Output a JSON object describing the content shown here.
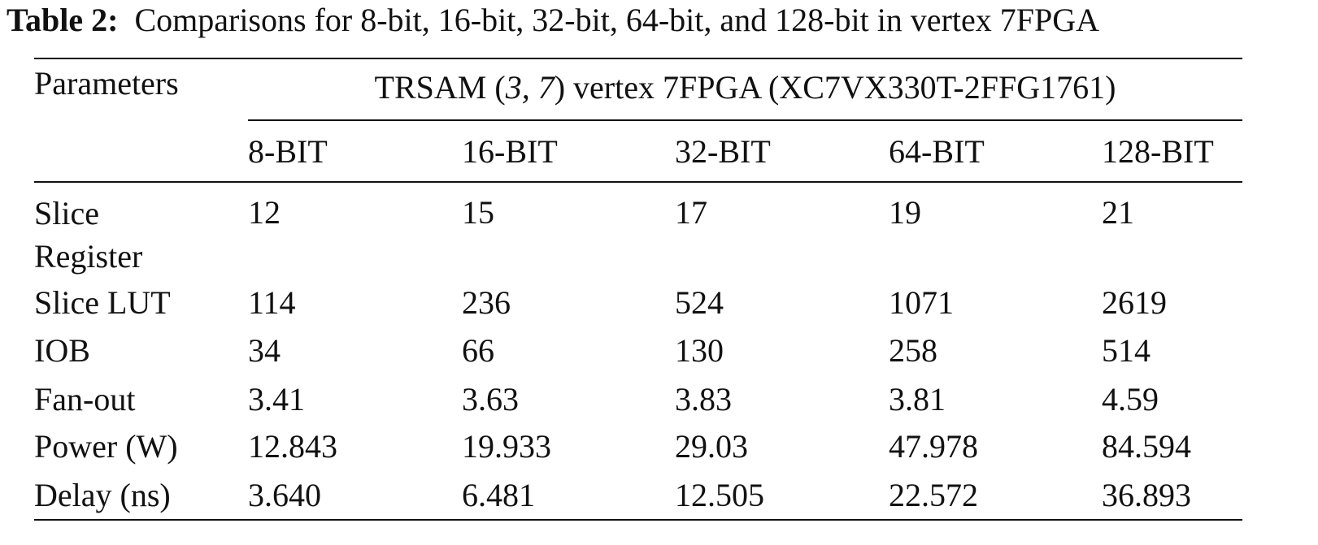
{
  "caption": {
    "label": "Table 2:",
    "text": "Comparisons for 8-bit, 16-bit, 32-bit, 64-bit, and 128-bit in vertex 7FPGA"
  },
  "table": {
    "corner": "Parameters",
    "group_header": {
      "before": "TRSAM (",
      "italic": "3, 7",
      "after": ") vertex 7FPGA (XC7VX330T-2FFG1761)"
    },
    "columns": [
      "8-BIT",
      "16-BIT",
      "32-BIT",
      "64-BIT",
      "128-BIT"
    ],
    "rows": [
      [
        "Slice Register",
        "12",
        "15",
        "17",
        "19",
        "21"
      ],
      [
        "Slice LUT",
        "114",
        "236",
        "524",
        "1071",
        "2619"
      ],
      [
        "IOB",
        "34",
        "66",
        "130",
        "258",
        "514"
      ],
      [
        "Fan-out",
        "3.41",
        "3.63",
        "3.83",
        "3.81",
        "4.59"
      ],
      [
        "Power (W)",
        "12.843",
        "19.933",
        "29.03",
        "47.978",
        "84.594"
      ],
      [
        "Delay (ns)",
        "3.640",
        "6.481",
        "12.505",
        "22.572",
        "36.893"
      ]
    ]
  }
}
